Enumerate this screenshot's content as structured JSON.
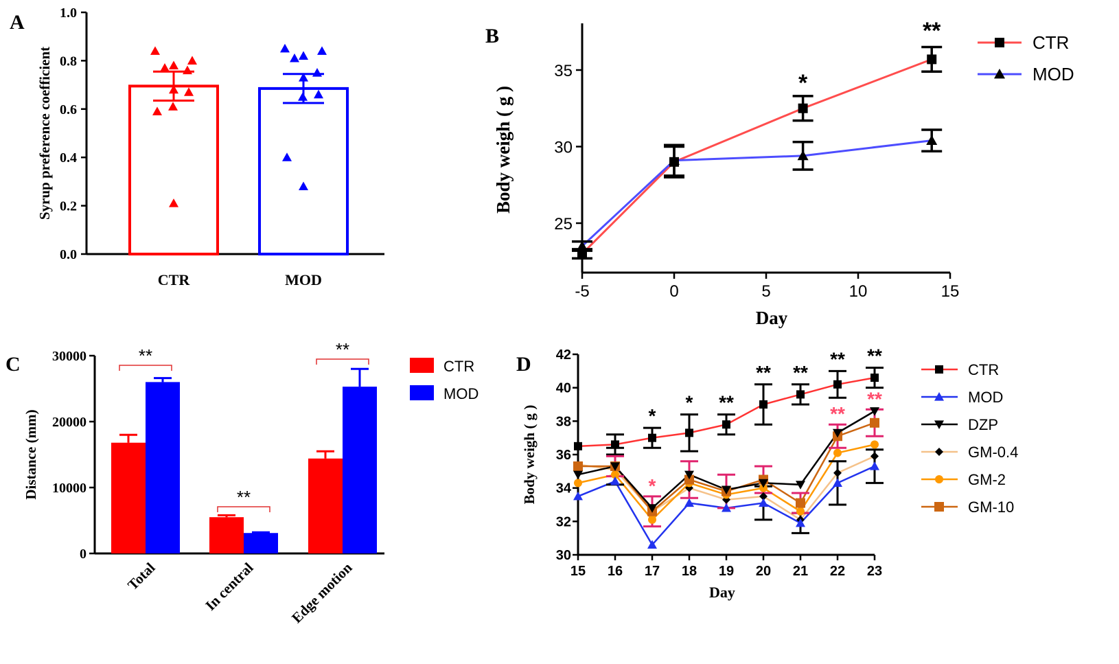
{
  "colors": {
    "ctr_red": "#ff0000",
    "mod_blue": "#0000ff",
    "line_red": "#ff4d4d",
    "line_blue": "#4d4dff",
    "black": "#000000",
    "dzp": "#000000",
    "gm04": "#f5c28a",
    "gm2": "#ff9900",
    "gm10": "#cc6611",
    "err_pink": "#e0246e",
    "star_pink": "#ff4d6d"
  },
  "chart_data": [
    {
      "panel": "A",
      "type": "bar",
      "ylabel": "Syrup preference coefficient",
      "categories": [
        "CTR",
        "MOD"
      ],
      "ylim": [
        0,
        1.0
      ],
      "yticks": [
        "0.0",
        "0.2",
        "0.4",
        "0.6",
        "0.8",
        "1.0"
      ],
      "series": [
        {
          "name": "CTR",
          "mean": 0.695,
          "sem": 0.06,
          "points": [
            0.84,
            0.8,
            0.78,
            0.77,
            0.76,
            0.68,
            0.67,
            0.61,
            0.59,
            0.21
          ]
        },
        {
          "name": "MOD",
          "mean": 0.685,
          "sem": 0.06,
          "points": [
            0.85,
            0.84,
            0.82,
            0.81,
            0.75,
            0.73,
            0.66,
            0.65,
            0.4,
            0.28
          ]
        }
      ]
    },
    {
      "panel": "B",
      "type": "line",
      "xlabel": "Day",
      "ylabel": "Body weigh ( g )",
      "x": [
        -5,
        0,
        7,
        14
      ],
      "xticks": [
        "-5",
        "0",
        "5",
        "10",
        "15"
      ],
      "yticks": [
        "25",
        "30",
        "35"
      ],
      "xlim": [
        -5,
        15
      ],
      "ylim": [
        22.5,
        38
      ],
      "series": [
        {
          "name": "CTR",
          "values": [
            23.0,
            29.0,
            32.5,
            35.7
          ],
          "sem": [
            0.3,
            1.0,
            0.8,
            0.8
          ]
        },
        {
          "name": "MOD",
          "values": [
            23.5,
            29.1,
            29.4,
            30.4
          ],
          "sem": [
            0.3,
            1.0,
            0.9,
            0.7
          ]
        }
      ],
      "annotations": [
        {
          "x": 7,
          "text": "*"
        },
        {
          "x": 14,
          "text": "**"
        }
      ]
    },
    {
      "panel": "C",
      "type": "bar",
      "ylabel": "Distance (mm)",
      "categories": [
        "Total",
        "In central",
        "Edge motion"
      ],
      "ylim": [
        0,
        30000
      ],
      "yticks": [
        "0",
        "10000",
        "20000",
        "30000"
      ],
      "series": [
        {
          "name": "CTR",
          "values": [
            16800,
            5500,
            14400
          ],
          "sem": [
            1200,
            300,
            1100
          ]
        },
        {
          "name": "MOD",
          "values": [
            26000,
            3100,
            25300
          ],
          "sem": [
            600,
            100,
            2700
          ]
        }
      ],
      "annotations": [
        "**",
        "**",
        "**"
      ]
    },
    {
      "panel": "D",
      "type": "line",
      "xlabel": "Day",
      "ylabel": "Body weigh ( g )",
      "x": [
        15,
        16,
        17,
        18,
        19,
        20,
        21,
        22,
        23
      ],
      "xticks": [
        "15",
        "16",
        "17",
        "18",
        "19",
        "20",
        "21",
        "22",
        "23"
      ],
      "yticks": [
        "30",
        "32",
        "34",
        "36",
        "38",
        "40",
        "42"
      ],
      "ylim": [
        30,
        42
      ],
      "series": [
        {
          "name": "CTR",
          "values": [
            36.5,
            36.6,
            37.0,
            37.3,
            37.8,
            39.0,
            39.6,
            40.2,
            40.6
          ],
          "sem": [
            0,
            0.6,
            0.6,
            1.1,
            0.6,
            1.2,
            0.6,
            0.8,
            0.6
          ]
        },
        {
          "name": "MOD",
          "values": [
            33.5,
            34.4,
            30.6,
            33.1,
            32.8,
            33.1,
            31.9,
            34.3,
            35.3
          ],
          "sem": [
            0,
            0,
            0,
            0,
            0,
            1.0,
            0.6,
            1.3,
            1.0
          ]
        },
        {
          "name": "DZP",
          "values": [
            34.8,
            35.3,
            32.8,
            34.8,
            33.9,
            34.3,
            34.2,
            37.3,
            38.6
          ],
          "sem": [
            0,
            1.1,
            0,
            0,
            0,
            0,
            0,
            0,
            0
          ]
        },
        {
          "name": "GM-0.4",
          "values": [
            35.4,
            35.1,
            32.6,
            34.0,
            33.3,
            33.5,
            32.1,
            34.9,
            35.9
          ],
          "sem": [
            0,
            0,
            0,
            0,
            0,
            0,
            0,
            0,
            0
          ]
        },
        {
          "name": "GM-2",
          "values": [
            34.3,
            34.8,
            32.1,
            34.3,
            33.6,
            34.0,
            32.6,
            36.1,
            36.6
          ],
          "sem": [
            0,
            0,
            0,
            0,
            0,
            0,
            0,
            0,
            0
          ]
        },
        {
          "name": "GM-10",
          "values": [
            35.3,
            35.3,
            32.6,
            34.5,
            33.8,
            34.5,
            33.1,
            37.1,
            37.9
          ],
          "sem": [
            0,
            0.6,
            0.9,
            1.1,
            1.0,
            0.8,
            0.6,
            0.7,
            0.8
          ]
        }
      ],
      "annotations_black": [
        {
          "x": 17,
          "text": "*"
        },
        {
          "x": 18,
          "text": "*"
        },
        {
          "x": 19,
          "text": "**"
        },
        {
          "x": 20,
          "text": "**"
        },
        {
          "x": 21,
          "text": "**"
        },
        {
          "x": 22,
          "text": "**"
        },
        {
          "x": 23,
          "text": "**"
        }
      ],
      "annotations_pink": [
        {
          "x": 17,
          "text": "*"
        },
        {
          "x": 22,
          "text": "**"
        },
        {
          "x": 23,
          "text": "**"
        }
      ]
    }
  ],
  "panel_labels": {
    "a": "A",
    "b": "B",
    "c": "C",
    "d": "D"
  }
}
